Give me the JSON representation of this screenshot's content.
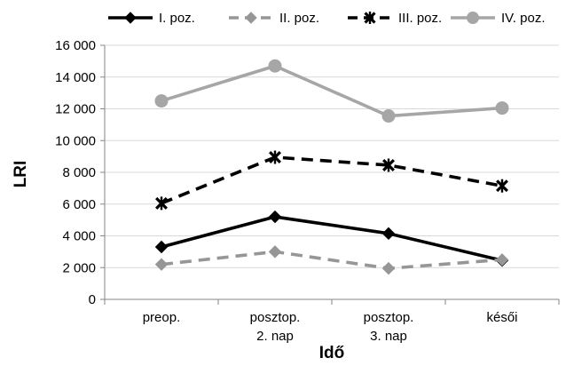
{
  "chart_data": {
    "type": "line",
    "categories": [
      [
        "preop."
      ],
      [
        "posztop.",
        "2. nap"
      ],
      [
        "posztop.",
        "3. nap"
      ],
      [
        "késői"
      ]
    ],
    "xlabel": "Idő",
    "ylabel": "LRI",
    "ylim": [
      0,
      16000
    ],
    "yticks": [
      "0",
      "2 000",
      "4 000",
      "6 000",
      "8 000",
      "10 000",
      "12 000",
      "14 000",
      "16 000"
    ],
    "legend_position": "top",
    "grid": "horizontal",
    "series": [
      {
        "name": "I. poz.",
        "values": [
          3300,
          5200,
          4150,
          2450
        ],
        "color": "#000000",
        "dash": "solid",
        "marker": "diamond"
      },
      {
        "name": "II. poz.",
        "values": [
          2200,
          3000,
          1950,
          2500
        ],
        "color": "#969696",
        "dash": "dashed",
        "marker": "diamond"
      },
      {
        "name": "III. poz.",
        "values": [
          6050,
          8950,
          8450,
          7150
        ],
        "color": "#000000",
        "dash": "dashed",
        "marker": "star"
      },
      {
        "name": "IV. poz.",
        "values": [
          12500,
          14700,
          11550,
          12050
        ],
        "color": "#a6a6a6",
        "dash": "solid",
        "marker": "circle"
      }
    ]
  }
}
